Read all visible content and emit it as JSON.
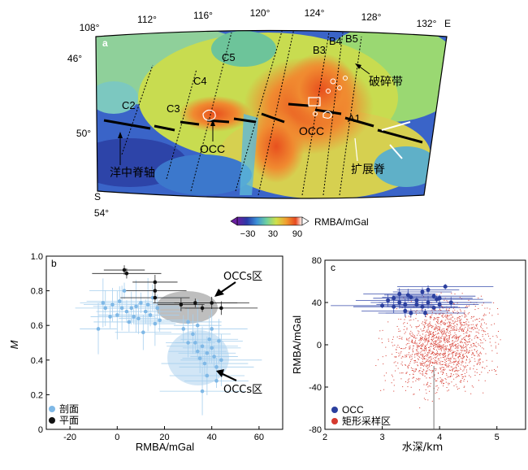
{
  "chart_data": [
    {
      "panel": "a",
      "type": "heatmap",
      "panel_label": "a",
      "lon_ticks": [
        "108°",
        "112°",
        "116°",
        "120°",
        "124°",
        "128°",
        "132°",
        "E"
      ],
      "lat_ticks": [
        "46°",
        "50°",
        "54°"
      ],
      "lat_hemisphere": "S",
      "segment_labels": [
        "C2",
        "C3",
        "C4",
        "C5",
        "B3",
        "B4",
        "B5",
        "A1"
      ],
      "annotations": [
        "洋中脊轴",
        "OCC",
        "OCC",
        "破碎带",
        "扩展脊"
      ],
      "colorbar": {
        "ticks": [
          "−30",
          "30",
          "90"
        ],
        "label": "RMBA/mGal",
        "range": [
          -30,
          90
        ]
      }
    },
    {
      "panel": "b",
      "type": "scatter",
      "panel_label": "b",
      "xlabel": "RMBA/mGal",
      "ylabel": "M",
      "xlim": [
        -30,
        70
      ],
      "ylim": [
        0,
        1.0
      ],
      "x_ticks": [
        -20,
        0,
        20,
        40,
        60
      ],
      "y_ticks": [
        "0",
        "0.2",
        "0.4",
        "0.6",
        "0.8",
        "1.0"
      ],
      "legend": [
        "剖面",
        "平面"
      ],
      "region_labels": [
        "OCCs区",
        "OCCs区"
      ],
      "series": [
        {
          "name": "剖面",
          "color": "#7fb8e6",
          "points": [
            [
              -5,
              0.7
            ],
            [
              -3,
              0.65
            ],
            [
              -2,
              0.72
            ],
            [
              0,
              0.66
            ],
            [
              1,
              0.74
            ],
            [
              2,
              0.7
            ],
            [
              3,
              0.8
            ],
            [
              4,
              0.68
            ],
            [
              5,
              0.62
            ],
            [
              6,
              0.7
            ],
            [
              7,
              0.65
            ],
            [
              8,
              0.71
            ],
            [
              9,
              0.64
            ],
            [
              10,
              0.73
            ],
            [
              11,
              0.56
            ],
            [
              12,
              0.68
            ],
            [
              13,
              0.72
            ],
            [
              14,
              0.66
            ],
            [
              15,
              0.76
            ],
            [
              16,
              0.61
            ],
            [
              17,
              0.7
            ],
            [
              -8,
              0.58
            ],
            [
              -6,
              0.73
            ],
            [
              18,
              0.63
            ],
            [
              30,
              0.62
            ],
            [
              32,
              0.55
            ],
            [
              33,
              0.5
            ],
            [
              34,
              0.45
            ],
            [
              35,
              0.41
            ],
            [
              36,
              0.48
            ],
            [
              37,
              0.38
            ],
            [
              38,
              0.44
            ],
            [
              39,
              0.52
            ],
            [
              40,
              0.47
            ],
            [
              41,
              0.42
            ],
            [
              42,
              0.36
            ],
            [
              43,
              0.51
            ],
            [
              44,
              0.4
            ],
            [
              36,
              0.22
            ],
            [
              38,
              0.31
            ],
            [
              42,
              0.28
            ],
            [
              28,
              0.58
            ],
            [
              30,
              0.5
            ],
            [
              40,
              0.58
            ],
            [
              34,
              0.6
            ]
          ]
        },
        {
          "name": "平面",
          "color": "#111111",
          "points": [
            [
              3,
              0.92
            ],
            [
              4,
              0.9
            ],
            [
              16,
              0.85
            ],
            [
              16,
              0.8
            ],
            [
              16,
              0.76
            ],
            [
              27,
              0.72
            ],
            [
              33,
              0.73
            ],
            [
              36,
              0.7
            ],
            [
              40,
              0.73
            ],
            [
              44,
              0.7
            ]
          ]
        }
      ]
    },
    {
      "panel": "c",
      "type": "scatter",
      "panel_label": "c",
      "xlabel": "水深/km",
      "ylabel": "RMBA/mGal",
      "xlim": [
        2,
        5.5
      ],
      "ylim": [
        -80,
        80
      ],
      "x_ticks": [
        2,
        3,
        4,
        5
      ],
      "y_ticks": [
        -80,
        -40,
        0,
        40,
        80
      ],
      "legend": [
        "OCC",
        "矩形采样区"
      ],
      "series": [
        {
          "name": "OCC",
          "color": "#2b3f9e",
          "points": [
            [
              3.1,
              42
            ],
            [
              3.2,
              36
            ],
            [
              3.3,
              40
            ],
            [
              3.4,
              32
            ],
            [
              3.5,
              45
            ],
            [
              3.6,
              38
            ],
            [
              3.7,
              50
            ],
            [
              3.8,
              40
            ],
            [
              3.9,
              35
            ],
            [
              4.0,
              44
            ],
            [
              4.1,
              55
            ],
            [
              3.3,
              48
            ],
            [
              3.5,
              30
            ],
            [
              3.7,
              36
            ],
            [
              3.9,
              46
            ],
            [
              4.0,
              38
            ],
            [
              3.6,
              42
            ],
            [
              3.4,
              38
            ],
            [
              3.8,
              52
            ],
            [
              3.2,
              44
            ],
            [
              4.2,
              40
            ],
            [
              3.0,
              37
            ],
            [
              3.75,
              30
            ],
            [
              3.45,
              47
            ],
            [
              3.95,
              43
            ]
          ]
        },
        {
          "name": "矩形采样区",
          "color": "#d63a2f",
          "center": [
            4.0,
            0
          ],
          "x_range": [
            2.8,
            5.2
          ],
          "y_range": [
            -70,
            50
          ]
        }
      ]
    }
  ]
}
